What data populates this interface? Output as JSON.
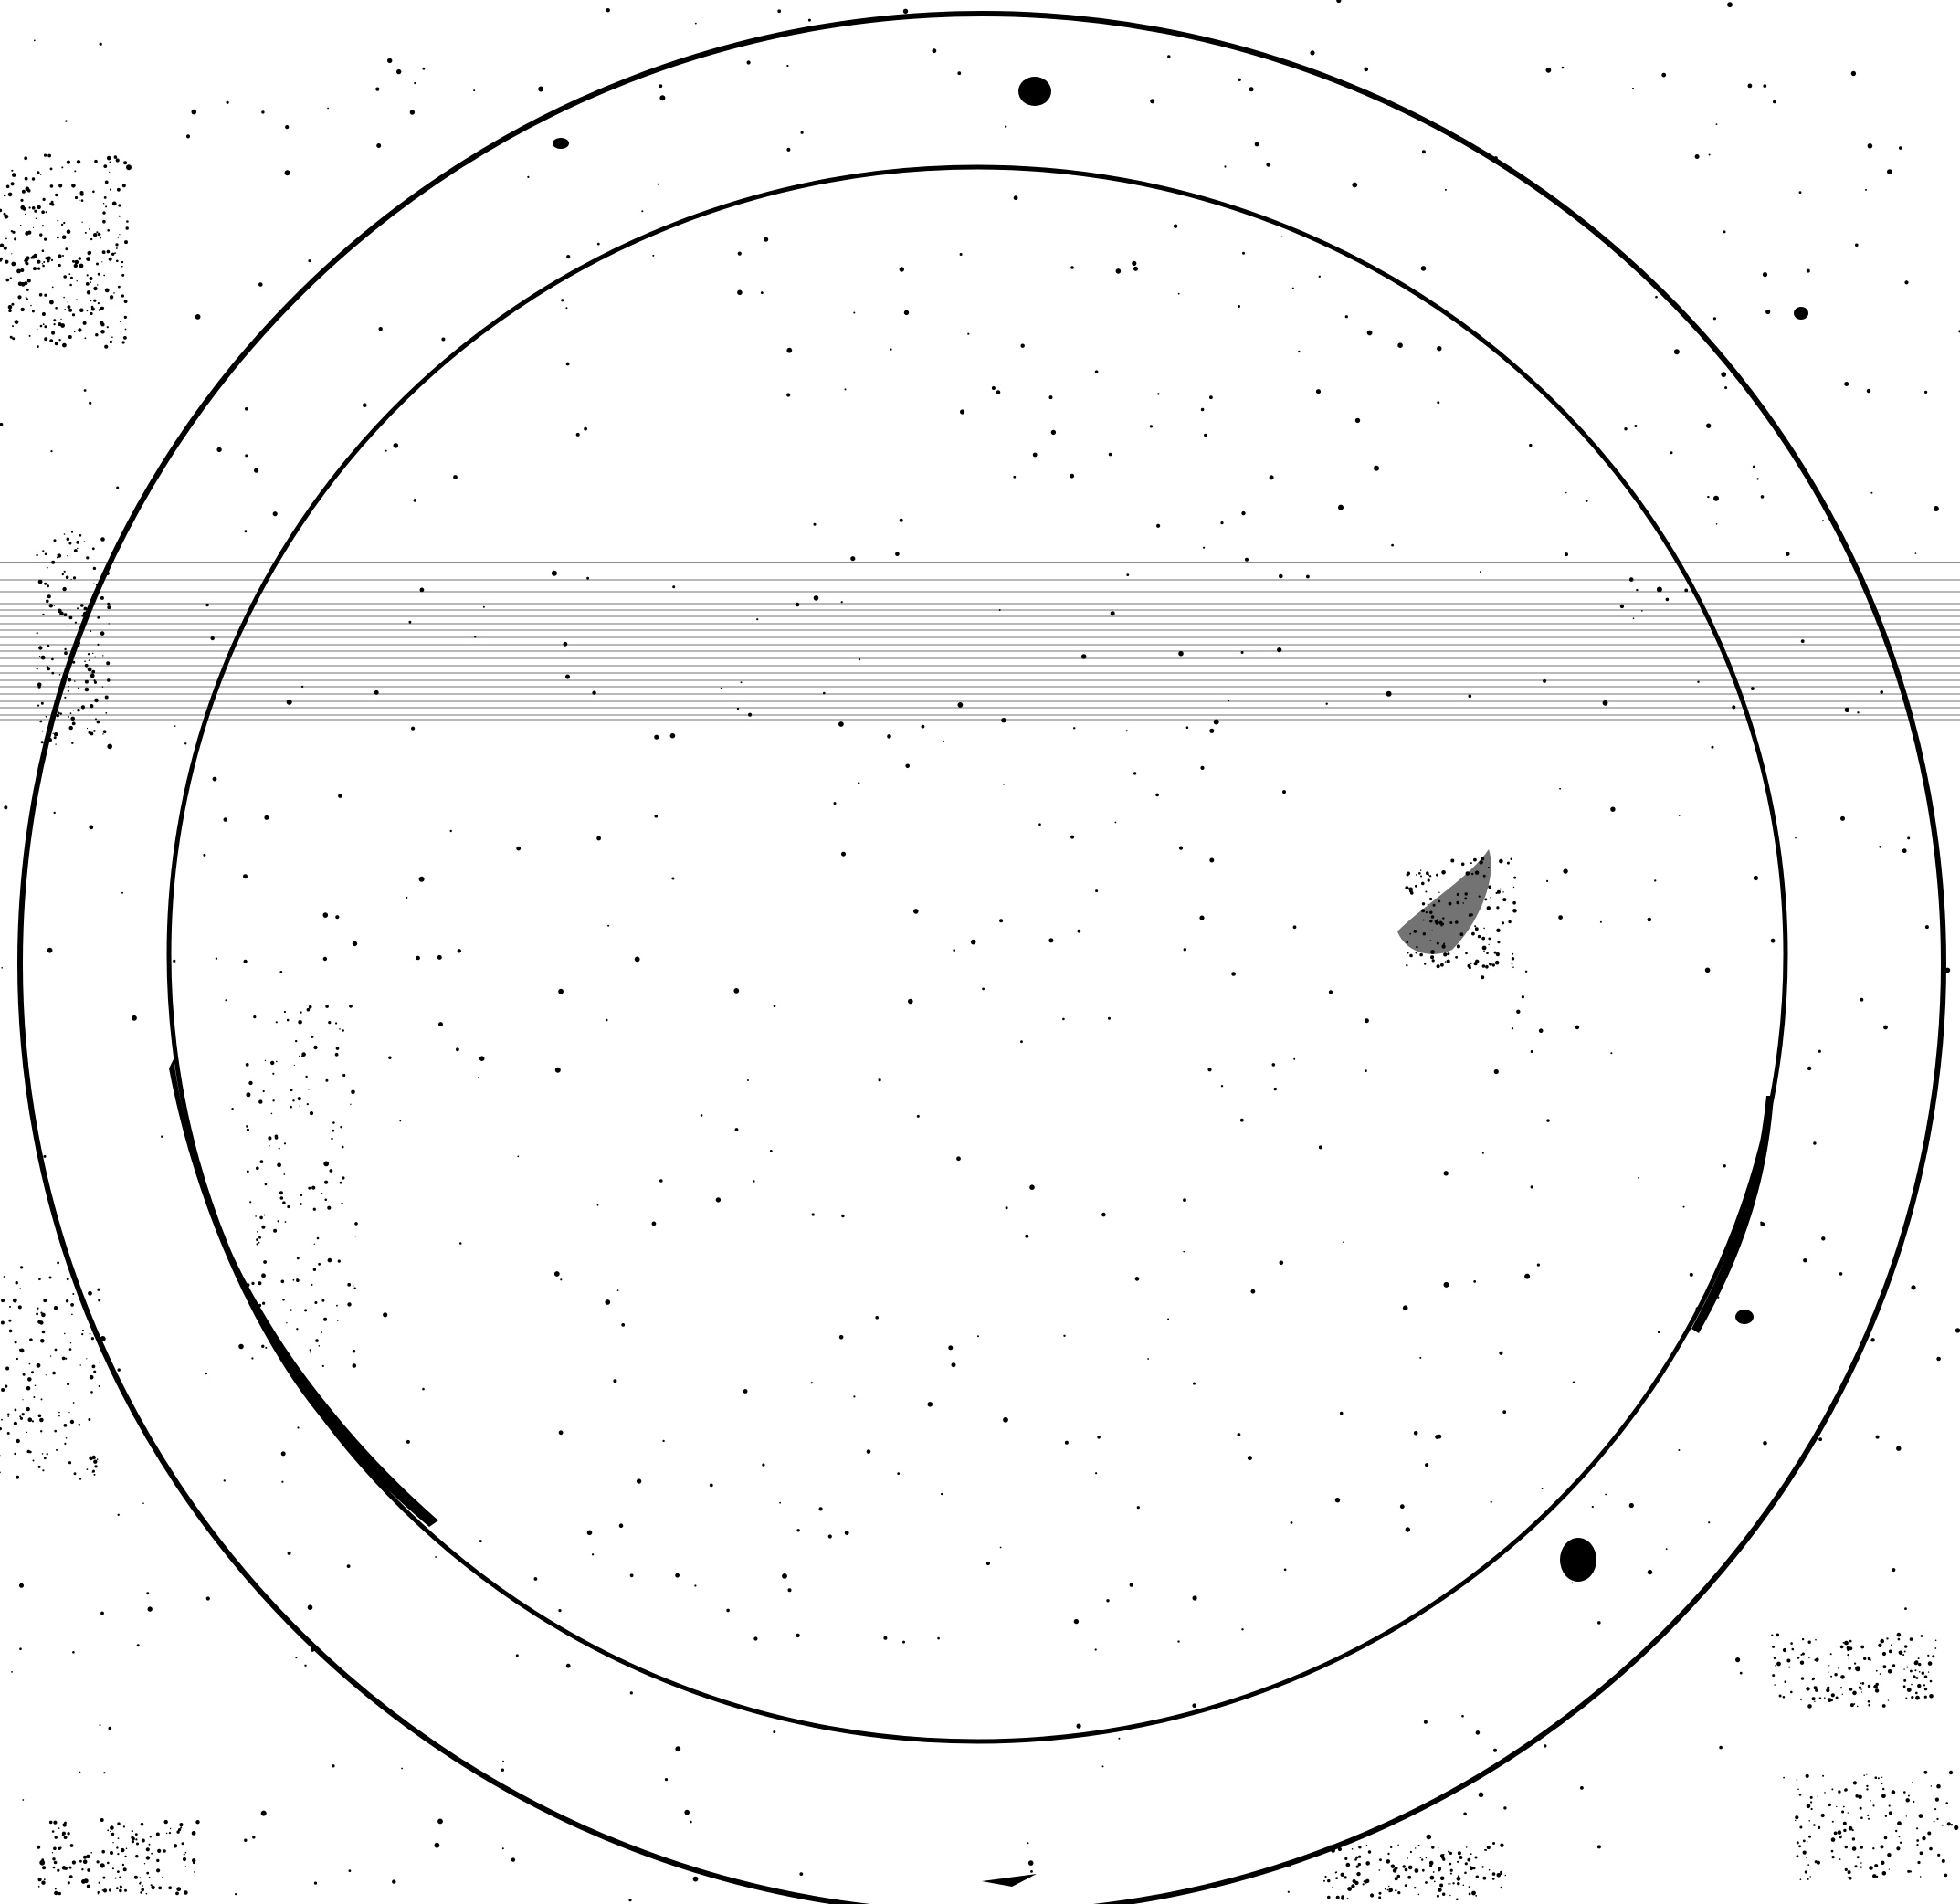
{
  "image": {
    "background_color": "#ffffff",
    "ink_color": "#000000",
    "objects": [
      {
        "kind": "outer-ring"
      },
      {
        "kind": "inner-ring"
      }
    ],
    "artifacts": [
      "scan-lines",
      "noise-specks",
      "ink-blots",
      "smudges"
    ]
  }
}
